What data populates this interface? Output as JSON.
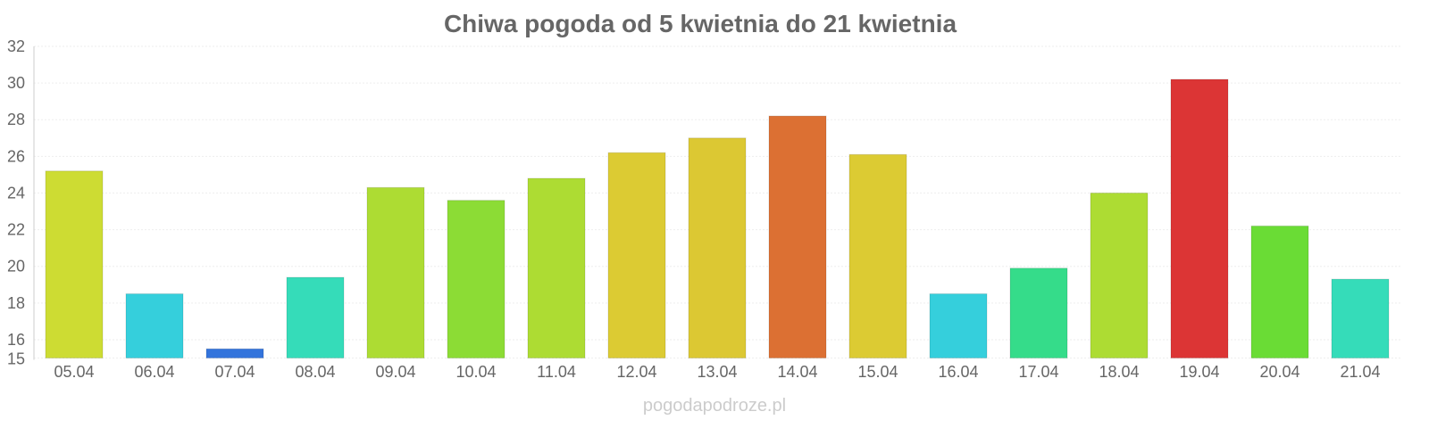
{
  "chart_data": {
    "type": "bar",
    "title": "Chiwa pogoda od 5 kwietnia do 21 kwietnia",
    "xlabel": "",
    "ylabel": "",
    "ylim": [
      15,
      32
    ],
    "yticks": [
      15,
      16,
      18,
      20,
      22,
      24,
      26,
      28,
      30,
      32
    ],
    "grid": true,
    "categories": [
      "05.04",
      "06.04",
      "07.04",
      "08.04",
      "09.04",
      "10.04",
      "11.04",
      "12.04",
      "13.04",
      "14.04",
      "15.04",
      "16.04",
      "17.04",
      "18.04",
      "19.04",
      "20.04",
      "21.04"
    ],
    "values": [
      25.2,
      18.5,
      15.5,
      19.4,
      24.3,
      23.6,
      24.8,
      26.2,
      27.0,
      28.2,
      26.1,
      18.5,
      19.9,
      24.0,
      30.2,
      22.2,
      19.3
    ],
    "colors": [
      "#cddc33",
      "#35cfdc",
      "#3374dc",
      "#35dcb9",
      "#addc33",
      "#8cdc35",
      "#addc33",
      "#dccb33",
      "#dcc833",
      "#dc7033",
      "#dccb33",
      "#35cfdc",
      "#35dc8a",
      "#addc33",
      "#dc3535",
      "#6adc35",
      "#35dcb9"
    ]
  },
  "footer": "pogodapodroze.pl"
}
